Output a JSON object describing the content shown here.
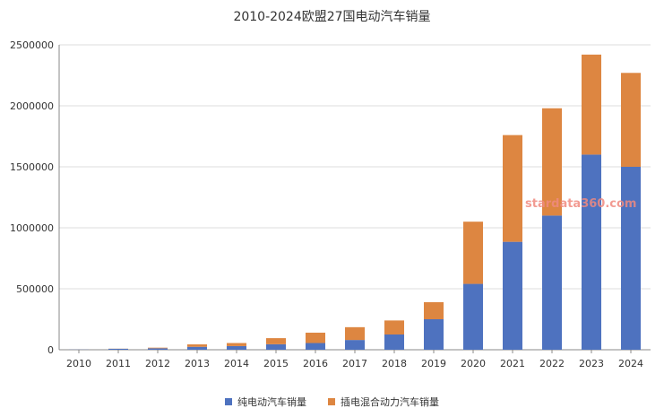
{
  "chart_data": {
    "type": "bar",
    "stacked": true,
    "title": "2010-2024欧盟27国电动汽车销量",
    "xlabel": "",
    "ylabel": "",
    "ylim": [
      0,
      2500000
    ],
    "yticks": [
      "0",
      "500000",
      "1000000",
      "1500000",
      "2000000",
      "2500000"
    ],
    "categories": [
      "2010",
      "2011",
      "2012",
      "2013",
      "2014",
      "2015",
      "2016",
      "2017",
      "2018",
      "2019",
      "2020",
      "2021",
      "2022",
      "2023",
      "2024"
    ],
    "series": [
      {
        "name": "纯电动汽车销量",
        "color": "#4e72bf",
        "values": [
          1000,
          8000,
          12000,
          24000,
          30000,
          45000,
          55000,
          80000,
          125000,
          250000,
          540000,
          885000,
          1100000,
          1600000,
          1500000
        ]
      },
      {
        "name": "插电混合动力汽车销量",
        "color": "#dd8641",
        "values": [
          0,
          1000,
          5000,
          20000,
          25000,
          50000,
          85000,
          105000,
          115000,
          140000,
          510000,
          875000,
          880000,
          820000,
          770000
        ]
      }
    ],
    "grid": true,
    "legend_position": "bottom"
  },
  "watermark": "stardata360.com"
}
